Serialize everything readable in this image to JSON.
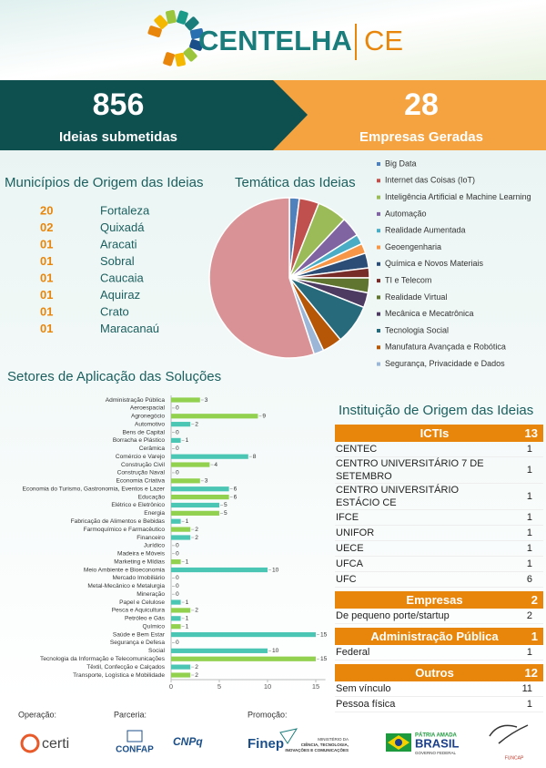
{
  "header": {
    "brand": "CENTELHA",
    "brand_suffix": "CE"
  },
  "stats": [
    {
      "value": 856,
      "label": "Ideias submetidas"
    },
    {
      "value": 28,
      "label": "Empresas Geradas"
    }
  ],
  "municipios": {
    "title": "Municípios de Origem das Ideias",
    "rows": [
      [
        "20",
        "Fortaleza"
      ],
      [
        "02",
        "Quixadá"
      ],
      [
        "01",
        "Aracati"
      ],
      [
        "01",
        "Sobral"
      ],
      [
        "01",
        "Caucaia"
      ],
      [
        "01",
        "Aquiraz"
      ],
      [
        "01",
        "Crato"
      ],
      [
        "01",
        "Maracanaú"
      ]
    ]
  },
  "chart_data": [
    {
      "type": "pie",
      "title": "Temática das Ideias",
      "categories": [
        "Big Data",
        "Internet das Coisas (IoT)",
        "Inteligência Artificial e Machine Learning",
        "Automação",
        "Realidade Aumentada",
        "Geoengenharia",
        "Química e Novos Materiais",
        "TI e Telecom",
        "Realidade Virtual",
        "Mecânica e Mecatrônica",
        "Tecnologia Social",
        "Manufatura Avançada e Robótica",
        "Segurança, Privacidade e Dados",
        null
      ],
      "values": [
        2,
        4,
        6,
        4,
        2,
        2,
        3,
        2,
        3,
        3,
        8,
        4,
        2,
        55
      ],
      "colors": [
        "#4f81bd",
        "#c0504d",
        "#9bbb59",
        "#8064a2",
        "#4bacc6",
        "#f79646",
        "#2c4d75",
        "#772c2a",
        "#5f7530",
        "#4d3b62",
        "#276a7c",
        "#b65708",
        "#9cb6d8",
        "#d99397"
      ]
    },
    {
      "type": "bar",
      "orientation": "horizontal",
      "title": "Setores de Aplicação das Soluções",
      "categories": [
        "Administração Pública",
        "Aeroespacial",
        "Agronegócio",
        "Automotivo",
        "Bens de Capital",
        "Borracha e Plástico",
        "Cerâmica",
        "Comércio e Varejo",
        "Construção Civil",
        "Construção Naval",
        "Economia Criativa",
        "Economia do Turismo, Gastronomia, Eventos e Lazer",
        "Educação",
        "Elétrico e Eletrônico",
        "Energia",
        "Fabricação de Alimentos e Bebidas",
        "Farmoquímico e Farmacêutico",
        "Financeiro",
        "Jurídico",
        "Madeira e Móveis",
        "Marketing e Mídias",
        "Meio Ambiente e Bioeconomia",
        "Mercado Imobiliário",
        "Metal-Mecânico e Metalurgia",
        "Mineração",
        "Papel e Celulose",
        "Pesca e Aquicultura",
        "Petróleo e Gás",
        "Químico",
        "Saúde e Bem Estar",
        "Segurança e Defesa",
        "Social",
        "Tecnologia da Informação e Telecomunicações",
        "Têxtil, Confecção e Calçados",
        "Transporte, Logística e Mobilidade"
      ],
      "values": [
        3,
        0,
        9,
        2,
        0,
        1,
        0,
        8,
        4,
        0,
        3,
        6,
        6,
        5,
        5,
        1,
        2,
        2,
        0,
        0,
        1,
        10,
        0,
        0,
        0,
        1,
        2,
        1,
        1,
        15,
        0,
        10,
        15,
        2,
        2
      ],
      "colors": [
        "#92d050",
        "#4bc6b4"
      ],
      "xlim": [
        0,
        16
      ],
      "xticks": [
        0,
        5,
        10,
        15
      ]
    }
  ],
  "instituicoes": {
    "title": "Instituição de Origem das Ideias",
    "groups": [
      {
        "name": "ICTIs",
        "total": 13,
        "rows": [
          [
            "CENTEC",
            1
          ],
          [
            "CENTRO UNIVERSITÁRIO 7 DE SETEMBRO",
            1
          ],
          [
            "CENTRO UNIVERSITÁRIO ESTÁCIO CE",
            1
          ],
          [
            "IFCE",
            1
          ],
          [
            "UNIFOR",
            1
          ],
          [
            "UECE",
            1
          ],
          [
            "UFCA",
            1
          ],
          [
            "UFC",
            6
          ]
        ]
      },
      {
        "name": "Empresas",
        "total": 2,
        "rows": [
          [
            "De pequeno porte/startup",
            2
          ]
        ]
      },
      {
        "name": "Administração Pública",
        "total": 1,
        "rows": [
          [
            "Federal",
            1
          ]
        ]
      },
      {
        "name": "Outros",
        "total": 12,
        "rows": [
          [
            "Sem vínculo",
            11
          ],
          [
            "Pessoa física",
            1
          ]
        ]
      }
    ]
  },
  "footer": {
    "operacao": "Operação:",
    "parceria": "Parceria:",
    "promocao": "Promoção:",
    "logos": {
      "certi": "certi",
      "confap": "CONFAP",
      "cnpq": "CNPq",
      "finep": "Finep",
      "ministerio_1": "MINISTÉRIO DA",
      "ministerio_2": "CIÊNCIA, TECNOLOGIA,",
      "ministerio_3": "INOVAÇÕES E COMUNICAÇÕES",
      "patria": "PÁTRIA AMADA",
      "brasil": "BRASIL",
      "governo": "GOVERNO FEDERAL",
      "funcap": "FUNCAP"
    }
  }
}
